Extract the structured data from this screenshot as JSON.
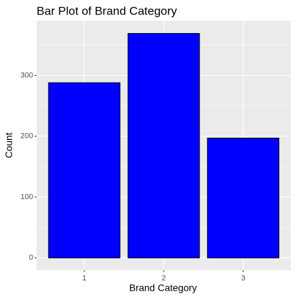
{
  "chart_data": {
    "type": "bar",
    "title": "Bar Plot of Brand Category",
    "x_label": "Brand Category",
    "y_label": "Count",
    "categories": [
      "1",
      "2",
      "3"
    ],
    "values": [
      288,
      369,
      197
    ],
    "color": "#0000ff",
    "ylim": [
      -20,
      390
    ],
    "yticks": [
      0,
      100,
      200,
      300
    ],
    "y_minor_ticks": [
      50,
      150,
      250,
      350
    ],
    "grid": true
  }
}
